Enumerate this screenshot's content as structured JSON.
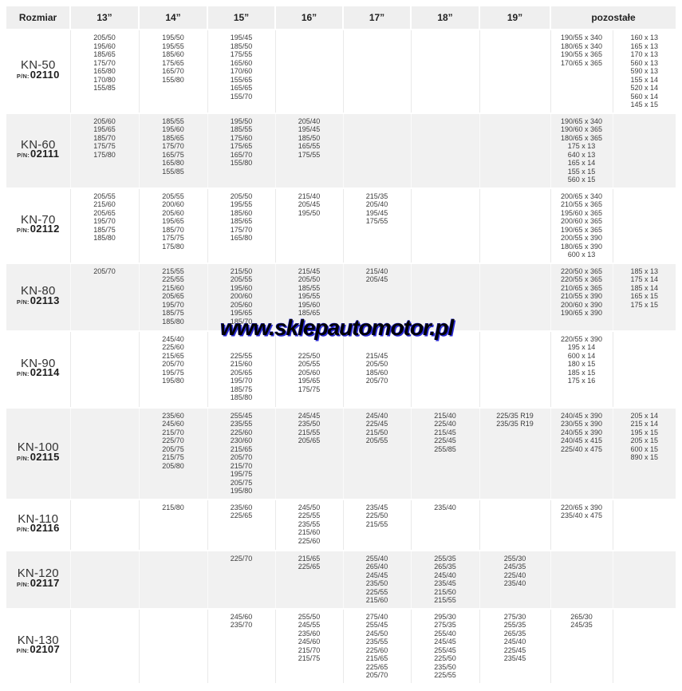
{
  "watermark": "www.sklepautomotor.pl",
  "colors": {
    "header_bg": "#efefef",
    "row_alt_bg": "#f1f1f1",
    "text": "#3c3c3c",
    "watermark_text": "#000000",
    "watermark_outline": "#2b2bd4"
  },
  "table": {
    "headers": [
      "Rozmiar",
      "13”",
      "14”",
      "15”",
      "16”",
      "17”",
      "18”",
      "19”",
      "pozostałe"
    ],
    "rows": [
      {
        "model": "KN-50",
        "pn_label": "P/N:",
        "pn": "02110",
        "cols": [
          [
            "205/50",
            "195/60",
            "185/65",
            "175/70",
            "165/80",
            "170/80",
            "155/85"
          ],
          [
            "195/50",
            "195/55",
            "185/60",
            "175/65",
            "165/70",
            "155/80"
          ],
          [
            "195/45",
            "185/50",
            "175/55",
            "165/60",
            "170/60",
            "155/65",
            "165/65",
            "155/70"
          ],
          [],
          [],
          [],
          [],
          [
            "190/55 x 340",
            "180/65 x 340",
            "190/55 x 365",
            "170/65 x 365"
          ],
          [
            "160 x 13",
            "165 x 13",
            "170 x 13",
            "560 x 13",
            "590 x 13",
            "155 x 14",
            "520 x 14",
            "560 x 14",
            "145 x 15"
          ]
        ]
      },
      {
        "model": "KN-60",
        "pn_label": "P/N:",
        "pn": "02111",
        "cols": [
          [
            "205/60",
            "195/65",
            "185/70",
            "175/75",
            "175/80"
          ],
          [
            "185/55",
            "195/60",
            "185/65",
            "175/70",
            "165/75",
            "165/80",
            "155/85"
          ],
          [
            "195/50",
            "185/55",
            "175/60",
            "175/65",
            "165/70",
            "155/80"
          ],
          [
            "205/40",
            "195/45",
            "185/50",
            "165/55",
            "175/55"
          ],
          [],
          [],
          [],
          [
            "190/65 x 340",
            "190/60 x 365",
            "180/65 x 365",
            "175 x 13",
            "640 x 13",
            "165 x 14",
            "155 x 15",
            "560 x 15"
          ],
          []
        ]
      },
      {
        "model": "KN-70",
        "pn_label": "P/N:",
        "pn": "02112",
        "cols": [
          [
            "205/55",
            "215/60",
            "205/65",
            "195/70",
            "185/75",
            "185/80"
          ],
          [
            "205/55",
            "200/60",
            "205/60",
            "195/65",
            "185/70",
            "175/75",
            "175/80"
          ],
          [
            "205/50",
            "195/55",
            "185/60",
            "185/65",
            "175/70",
            "165/80"
          ],
          [
            "215/40",
            "205/45",
            "195/50"
          ],
          [
            "215/35",
            "205/40",
            "195/45",
            "175/55"
          ],
          [],
          [],
          [
            "200/65 x 340",
            "210/55 x 365",
            "195/60 x 365",
            "200/60 x 365",
            "190/65 x 365",
            "200/55 x 390",
            "180/65 x 390",
            "600 x 13"
          ],
          []
        ]
      },
      {
        "model": "KN-80",
        "pn_label": "P/N:",
        "pn": "02113",
        "cols": [
          [
            "205/70"
          ],
          [
            "215/55",
            "225/55",
            "215/60",
            "205/65",
            "195/70",
            "185/75",
            "185/80"
          ],
          [
            "215/50",
            "205/55",
            "195/60",
            "200/60",
            "205/60",
            "195/65",
            "185/70"
          ],
          [
            "215/45",
            "205/50",
            "185/55",
            "195/55",
            "195/60",
            "185/65"
          ],
          [
            "215/40",
            "205/45"
          ],
          [],
          [],
          [
            "220/50 x 365",
            "220/55 x 365",
            "210/65 x 365",
            "210/55 x 390",
            "200/60 x 390",
            "190/65 x 390"
          ],
          [
            "185 x 13",
            "175 x 14",
            "185 x 14",
            "165 x 15",
            "175 x 15"
          ]
        ]
      },
      {
        "model": "KN-90",
        "pn_label": "P/N:",
        "pn": "02114",
        "cols": [
          [],
          [
            "245/40",
            "225/60",
            "215/65",
            "205/70",
            "195/75",
            "195/80"
          ],
          [
            "",
            "",
            "225/55",
            "215/60",
            "205/65",
            "195/70",
            "185/75",
            "185/80"
          ],
          [
            "",
            "",
            "225/50",
            "205/55",
            "205/60",
            "195/65",
            "175/75"
          ],
          [
            "",
            "",
            "215/45",
            "205/50",
            "185/60",
            "205/70"
          ],
          [],
          [],
          [
            "220/55 x 390",
            "195 x 14",
            "600 x 14",
            "180 x 15",
            "185 x 15",
            "175 x 16"
          ],
          []
        ]
      },
      {
        "model": "KN-100",
        "pn_label": "P/N:",
        "pn": "02115",
        "cols": [
          [],
          [
            "235/60",
            "245/60",
            "215/70",
            "225/70",
            "205/75",
            "215/75",
            "205/80"
          ],
          [
            "255/45",
            "235/55",
            "225/60",
            "230/60",
            "215/65",
            "205/70",
            "215/70",
            "195/75",
            "205/75",
            "195/80"
          ],
          [
            "245/45",
            "235/50",
            "215/55",
            "205/65"
          ],
          [
            "245/40",
            "225/45",
            "215/50",
            "205/55"
          ],
          [
            "215/40",
            "225/40",
            "215/45",
            "225/45",
            "255/85"
          ],
          [
            "225/35 R19",
            "235/35 R19"
          ],
          [
            "240/45 x 390",
            "230/55 x 390",
            "240/55 x 390",
            "240/45 x 415",
            "225/40 x 475"
          ],
          [
            "205 x 14",
            "215 x 14",
            "195 x 15",
            "205 x 15",
            "600 x 15",
            "890 x 15"
          ]
        ]
      },
      {
        "model": "KN-110",
        "pn_label": "P/N:",
        "pn": "02116",
        "cols": [
          [],
          [
            "215/80"
          ],
          [
            "235/60",
            "225/65"
          ],
          [
            "245/50",
            "225/55",
            "235/55",
            "215/60",
            "225/60"
          ],
          [
            "235/45",
            "225/50",
            "215/55"
          ],
          [
            "235/40"
          ],
          [],
          [
            "220/65 x 390",
            "235/40 x 475"
          ],
          []
        ]
      },
      {
        "model": "KN-120",
        "pn_label": "P/N:",
        "pn": "02117",
        "cols": [
          [],
          [],
          [
            "225/70"
          ],
          [
            "215/65",
            "225/65"
          ],
          [
            "255/40",
            "265/40",
            "245/45",
            "235/50",
            "225/55",
            "215/60"
          ],
          [
            "255/35",
            "265/35",
            "245/40",
            "235/45",
            "215/50",
            "215/55"
          ],
          [
            "255/30",
            "245/35",
            "225/40",
            "235/40"
          ],
          [],
          []
        ]
      },
      {
        "model": "KN-130",
        "pn_label": "P/N:",
        "pn": "02107",
        "cols": [
          [],
          [],
          [
            "245/60",
            "235/70"
          ],
          [
            "255/50",
            "245/55",
            "235/60",
            "245/60",
            "215/70",
            "215/75"
          ],
          [
            "275/40",
            "255/45",
            "245/50",
            "235/55",
            "225/60",
            "215/65",
            "225/65",
            "205/70"
          ],
          [
            "295/30",
            "275/35",
            "255/40",
            "245/45",
            "255/45",
            "225/50",
            "235/50",
            "225/55"
          ],
          [
            "275/30",
            "255/35",
            "265/35",
            "245/40",
            "225/45",
            "235/45"
          ],
          [
            "265/30",
            "245/35"
          ],
          []
        ]
      }
    ]
  }
}
